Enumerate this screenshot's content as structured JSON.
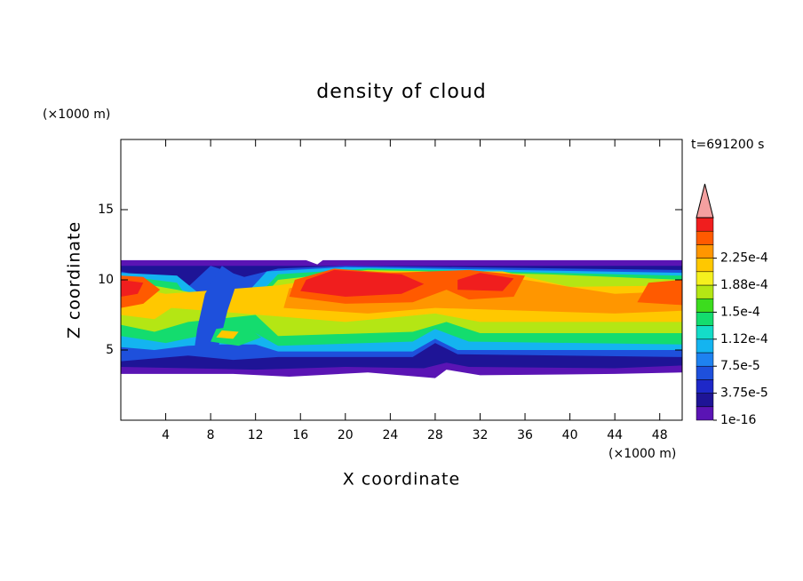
{
  "chart_data": {
    "type": "contour",
    "title": "density of cloud",
    "xlabel": "X coordinate",
    "ylabel": "Z coordinate",
    "x_unit": "(×1000 m)",
    "y_unit": "(×1000 m)",
    "time_label": "t=691200 s",
    "xlim": [
      0,
      50
    ],
    "ylim": [
      0,
      20
    ],
    "xticks": [
      4,
      8,
      12,
      16,
      20,
      24,
      28,
      32,
      36,
      40,
      44,
      48
    ],
    "yticks": [
      5,
      10,
      15
    ],
    "levels": [
      {
        "value": 1e-16,
        "label": "1e-16"
      },
      {
        "value": 3.75e-05,
        "label": "3.75e-5"
      },
      {
        "value": 7.5e-05,
        "label": "7.5e-5"
      },
      {
        "value": 0.000112,
        "label": "1.12e-4"
      },
      {
        "value": 0.00015,
        "label": "1.5e-4"
      },
      {
        "value": 0.000188,
        "label": "1.88e-4"
      },
      {
        "value": 0.000225,
        "label": "2.25e-4"
      }
    ],
    "colors": [
      "#5a14b4",
      "#1e1496",
      "#1e28c8",
      "#1e50dc",
      "#1e82f0",
      "#14b4f0",
      "#14dcc8",
      "#14dc6e",
      "#3cdc1e",
      "#b4e614",
      "#f5f01e",
      "#ffc800",
      "#ff9600",
      "#ff5a00",
      "#f01e1e"
    ],
    "extend_color": "#f4a0a0"
  }
}
